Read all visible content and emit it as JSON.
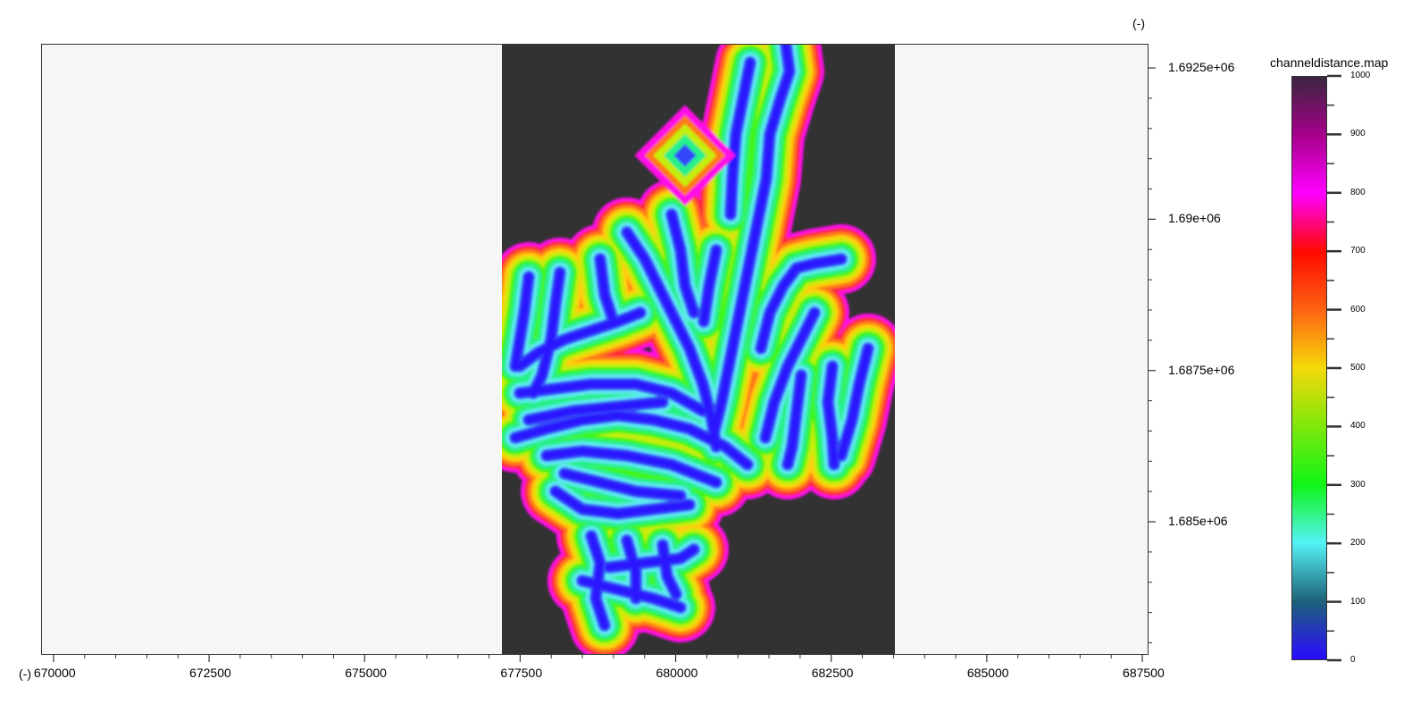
{
  "plot": {
    "x_unit": "(-)",
    "y_unit": "(-)",
    "x_ticks": [
      "670000",
      "672500",
      "675000",
      "677500",
      "680000",
      "682500",
      "685000",
      "687500"
    ],
    "y_ticks": [
      "1.6925e+06",
      "1.69e+06",
      "1.6875e+06",
      "1.685e+06"
    ],
    "x_range": [
      669800,
      687600
    ],
    "y_range": [
      1682800,
      1692900
    ],
    "raster_extent_x": [
      677300,
      683700
    ],
    "background_color": "#f5f6f5",
    "nodata_color": "#323232"
  },
  "legend": {
    "title": "channeldistance.map",
    "ticks": [
      "1000",
      "900",
      "800",
      "700",
      "600",
      "500",
      "400",
      "300",
      "200",
      "100",
      "0"
    ],
    "range": [
      0,
      1000
    ],
    "colors": [
      "#2a0bff",
      "#1e6278",
      "#55f2f6",
      "#10f517",
      "#7fe70c",
      "#f4d909",
      "#fd6312",
      "#ff0a00",
      "#ff00ff",
      "#a6008a",
      "#3a263f"
    ]
  }
}
